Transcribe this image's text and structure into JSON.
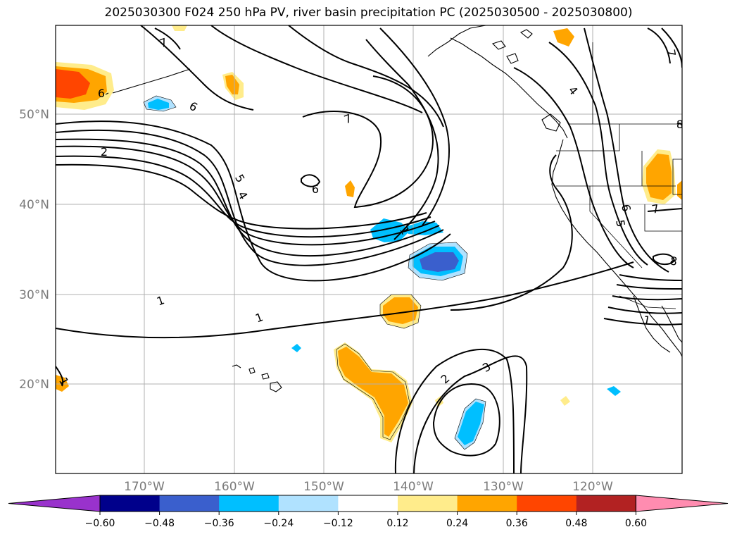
{
  "title": "2025030300 F024 250 hPa PV, river basin precipitation PC (2025030500 - 2025030800)",
  "longitude_labels": [
    "170°W",
    "160°W",
    "150°W",
    "140°W",
    "130°W",
    "120°W"
  ],
  "latitude_labels": [
    "50°N",
    "40°N",
    "30°N",
    "20°N"
  ],
  "contour_labels": [
    "7",
    "6",
    "6",
    "2",
    "5",
    "4",
    "7",
    "6",
    "1",
    "1",
    "1",
    "2",
    "3",
    "4",
    "7",
    "6",
    "5",
    "7",
    "8",
    "1",
    "1",
    "8"
  ],
  "colorbar": {
    "ticks": [
      "−0.60",
      "−0.48",
      "−0.36",
      "−0.24",
      "−0.12",
      "0.12",
      "0.24",
      "0.36",
      "0.48",
      "0.60"
    ],
    "colors": [
      "#9932cc",
      "#00008b",
      "#3a5fcd",
      "#00bfff",
      "#b0e2ff",
      "#ffffff",
      "#ffec8b",
      "#ffa500",
      "#ff4500",
      "#b22222",
      "#ff8cb0"
    ]
  }
}
